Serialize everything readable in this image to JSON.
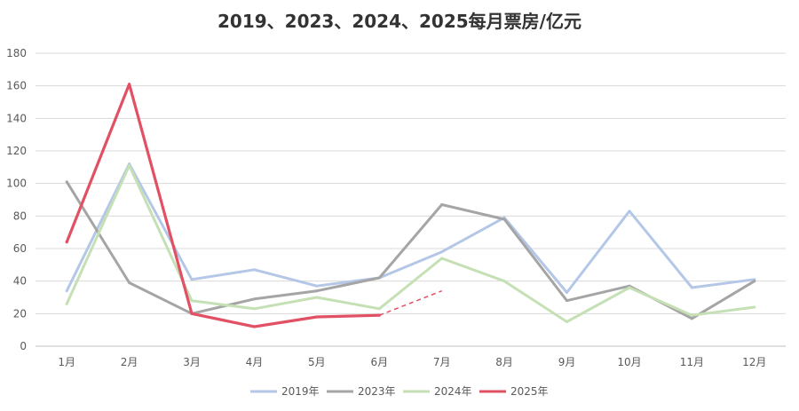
{
  "chart_data": {
    "type": "line",
    "title": "2019、2023、2024、2025每月票房/亿元",
    "categories": [
      "1月",
      "2月",
      "3月",
      "4月",
      "5月",
      "6月",
      "7月",
      "8月",
      "9月",
      "10月",
      "11月",
      "12月"
    ],
    "ylim": [
      0,
      180
    ],
    "yticks": [
      0,
      20,
      40,
      60,
      80,
      100,
      120,
      140,
      160,
      180
    ],
    "grid": true,
    "legend_position": "bottom",
    "series": [
      {
        "name": "2019年",
        "color": "#b4c7e7",
        "values": [
          34,
          112,
          41,
          47,
          37,
          42,
          58,
          79,
          33,
          83,
          36,
          41
        ]
      },
      {
        "name": "2023年",
        "color": "#a5a5a5",
        "values": [
          101,
          39,
          20,
          29,
          34,
          42,
          87,
          78,
          28,
          37,
          17,
          40
        ]
      },
      {
        "name": "2024年",
        "color": "#c5e0b4",
        "values": [
          26,
          111,
          28,
          23,
          30,
          23,
          54,
          40,
          15,
          36,
          19,
          24
        ]
      },
      {
        "name": "2025年",
        "color": "#e15063",
        "values": [
          64,
          161,
          20,
          12,
          18,
          19,
          null,
          null,
          null,
          null,
          null,
          null
        ]
      }
    ],
    "projection": {
      "series": "2025年",
      "from_category": "6月",
      "to_category": "7月",
      "from_value": 19,
      "to_value": 34,
      "style": "dashed"
    }
  }
}
